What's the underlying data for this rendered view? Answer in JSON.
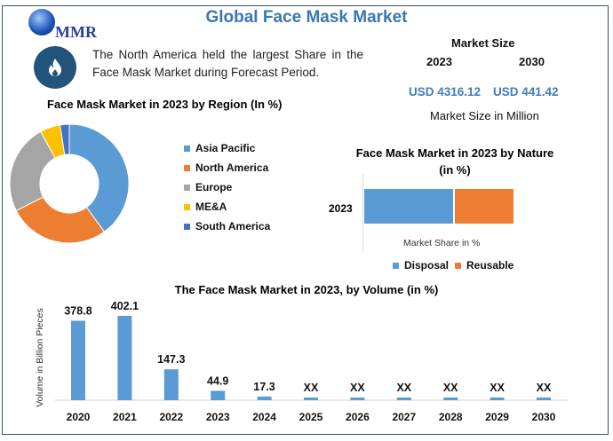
{
  "header": {
    "title": "Global Face Mask Market",
    "logo_text": "MMR"
  },
  "highlight": {
    "icon": "flame-icon",
    "text": "The North America held the largest Share in the Face Mask Market during Forecast Period."
  },
  "market_size": {
    "label": "Market Size",
    "year_a": "2023",
    "year_b": "2030",
    "value_a": "USD 4316.12",
    "value_b": "USD 441.42",
    "unit": "Market Size in Million"
  },
  "colors": {
    "blue": "#5b9bd5",
    "orange": "#ed7d31",
    "gray": "#a5a5a5",
    "yellow": "#ffc000",
    "darkblue": "#4472c4"
  },
  "chart_data": [
    {
      "type": "pie",
      "title": "Face Mask Market in 2023 by Region (In %)",
      "donut": true,
      "categories": [
        "Asia Pacific",
        "North America",
        "Europe",
        "ME&A",
        "South America"
      ],
      "values": [
        40,
        27.5,
        24.5,
        5.5,
        2.5
      ],
      "legend": "right"
    },
    {
      "type": "bar",
      "orientation": "horizontal",
      "stacked": true,
      "title": "Face Mask Market in 2023 by Nature (in %)",
      "categories": [
        "2023"
      ],
      "series": [
        {
          "name": "Disposal",
          "values": [
            60
          ]
        },
        {
          "name": "Reusable",
          "values": [
            40
          ]
        }
      ],
      "xlabel": "Market Share in %",
      "legend": "bottom"
    },
    {
      "type": "bar",
      "title": "The Face Mask Market in 2023, by Volume (in %)",
      "ylabel": "Volume in Billion Pieces",
      "categories": [
        "2020",
        "2021",
        "2022",
        "2023",
        "2024",
        "2025",
        "2026",
        "2027",
        "2028",
        "2029",
        "2030"
      ],
      "values": [
        378.8,
        402.1,
        147.3,
        44.9,
        17.3,
        null,
        null,
        null,
        null,
        null,
        null
      ],
      "labels": [
        "378.8",
        "402.1",
        "147.3",
        "44.9",
        "17.3",
        "XX",
        "XX",
        "XX",
        "XX",
        "XX",
        "XX"
      ],
      "ylim": [
        0,
        420
      ]
    }
  ]
}
